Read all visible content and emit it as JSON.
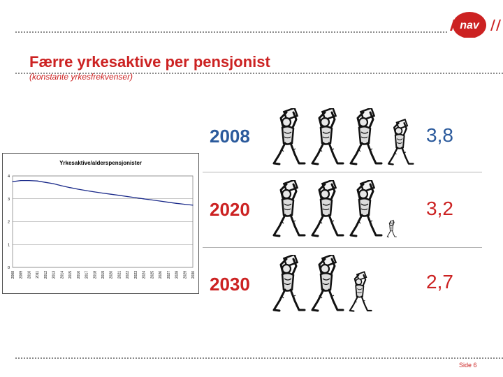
{
  "slide": {
    "title": "Færre yrkesaktive per pensjonist",
    "subtitle": "(konstante yrkesfrekvenser)",
    "footer": "Side 6"
  },
  "logo": {
    "text": "nav",
    "brand_color": "#cc2222",
    "icon": "nav-logo-icon"
  },
  "rows": [
    {
      "year": "2008",
      "ratio": "3,8",
      "full_figures": 3,
      "partial_fraction": 0.8,
      "color": "#2b5a9c"
    },
    {
      "year": "2020",
      "ratio": "3,2",
      "full_figures": 3,
      "partial_fraction": 0.2,
      "color": "#cc2222"
    },
    {
      "year": "2030",
      "ratio": "2,7",
      "full_figures": 2,
      "partial_fraction": 0.7,
      "color": "#cc2222"
    }
  ],
  "figure_icon": "worker-carrying-figure-icon",
  "chart_data": {
    "type": "line",
    "title": "Yrkesaktive/alderspensjonister",
    "xlabel": "",
    "ylabel": "",
    "categories": [
      "2008",
      "2009",
      "2010",
      "2011",
      "2012",
      "2013",
      "2014",
      "2015",
      "2016",
      "2017",
      "2018",
      "2019",
      "2020",
      "2021",
      "2022",
      "2023",
      "2024",
      "2025",
      "2026",
      "2027",
      "2028",
      "2029",
      "2030"
    ],
    "series": [
      {
        "values": [
          3.75,
          3.8,
          3.8,
          3.78,
          3.72,
          3.66,
          3.57,
          3.49,
          3.42,
          3.36,
          3.3,
          3.25,
          3.2,
          3.15,
          3.1,
          3.05,
          3.0,
          2.95,
          2.9,
          2.85,
          2.8,
          2.76,
          2.72
        ]
      }
    ],
    "yticks": [
      "0",
      "1",
      "2",
      "3",
      "4"
    ],
    "ylim": [
      0,
      4
    ],
    "grid": true,
    "line_color": "#1a2a8a"
  }
}
